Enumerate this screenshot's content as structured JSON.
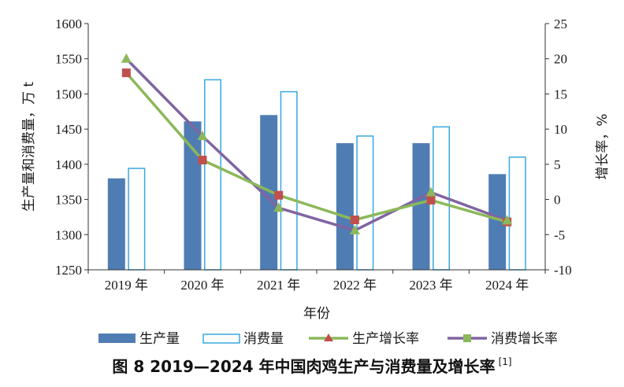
{
  "chart_data": {
    "type": "bar+line",
    "categories": [
      "2019 年",
      "2020 年",
      "2021 年",
      "2022 年",
      "2023 年",
      "2024 年"
    ],
    "series": [
      {
        "name": "生产量",
        "kind": "bar",
        "axis": "left",
        "color": "#4f7db3",
        "values": [
          1380,
          1461,
          1470,
          1430,
          1430,
          1386
        ]
      },
      {
        "name": "消费量",
        "kind": "bar-outline",
        "axis": "left",
        "color": "#39a7e0",
        "values": [
          1395,
          1521,
          1504,
          1441,
          1454,
          1411
        ]
      },
      {
        "name": "生产增长率",
        "kind": "line",
        "axis": "right",
        "color": "#8cb85a",
        "marker_color": "#c0504d",
        "marker": "triangle-square",
        "values": [
          18.0,
          5.6,
          0.6,
          -2.9,
          -0.1,
          -3.2
        ]
      },
      {
        "name": "消费增长率",
        "kind": "line",
        "axis": "right",
        "color": "#8064a2",
        "marker_color": "#8cb85a",
        "marker": "triangle",
        "values": [
          20.0,
          9.0,
          -1.2,
          -4.4,
          1.0,
          -3.0
        ]
      }
    ],
    "xlabel": "年份",
    "ylabel": "生产量和消费量，万 t",
    "y2label": "增长率，%",
    "ylim": [
      1250,
      1600
    ],
    "yticks": [
      1250,
      1300,
      1350,
      1400,
      1450,
      1500,
      1550,
      1600
    ],
    "y2lim": [
      -10,
      25
    ],
    "y2ticks": [
      -10,
      -5,
      0,
      5,
      10,
      15,
      20,
      25
    ],
    "legend_position": "bottom",
    "grid": false
  },
  "caption": {
    "text": "图 8  2019—2024 年中国肉鸡生产与消费量及增长率",
    "ref": "[1]"
  }
}
